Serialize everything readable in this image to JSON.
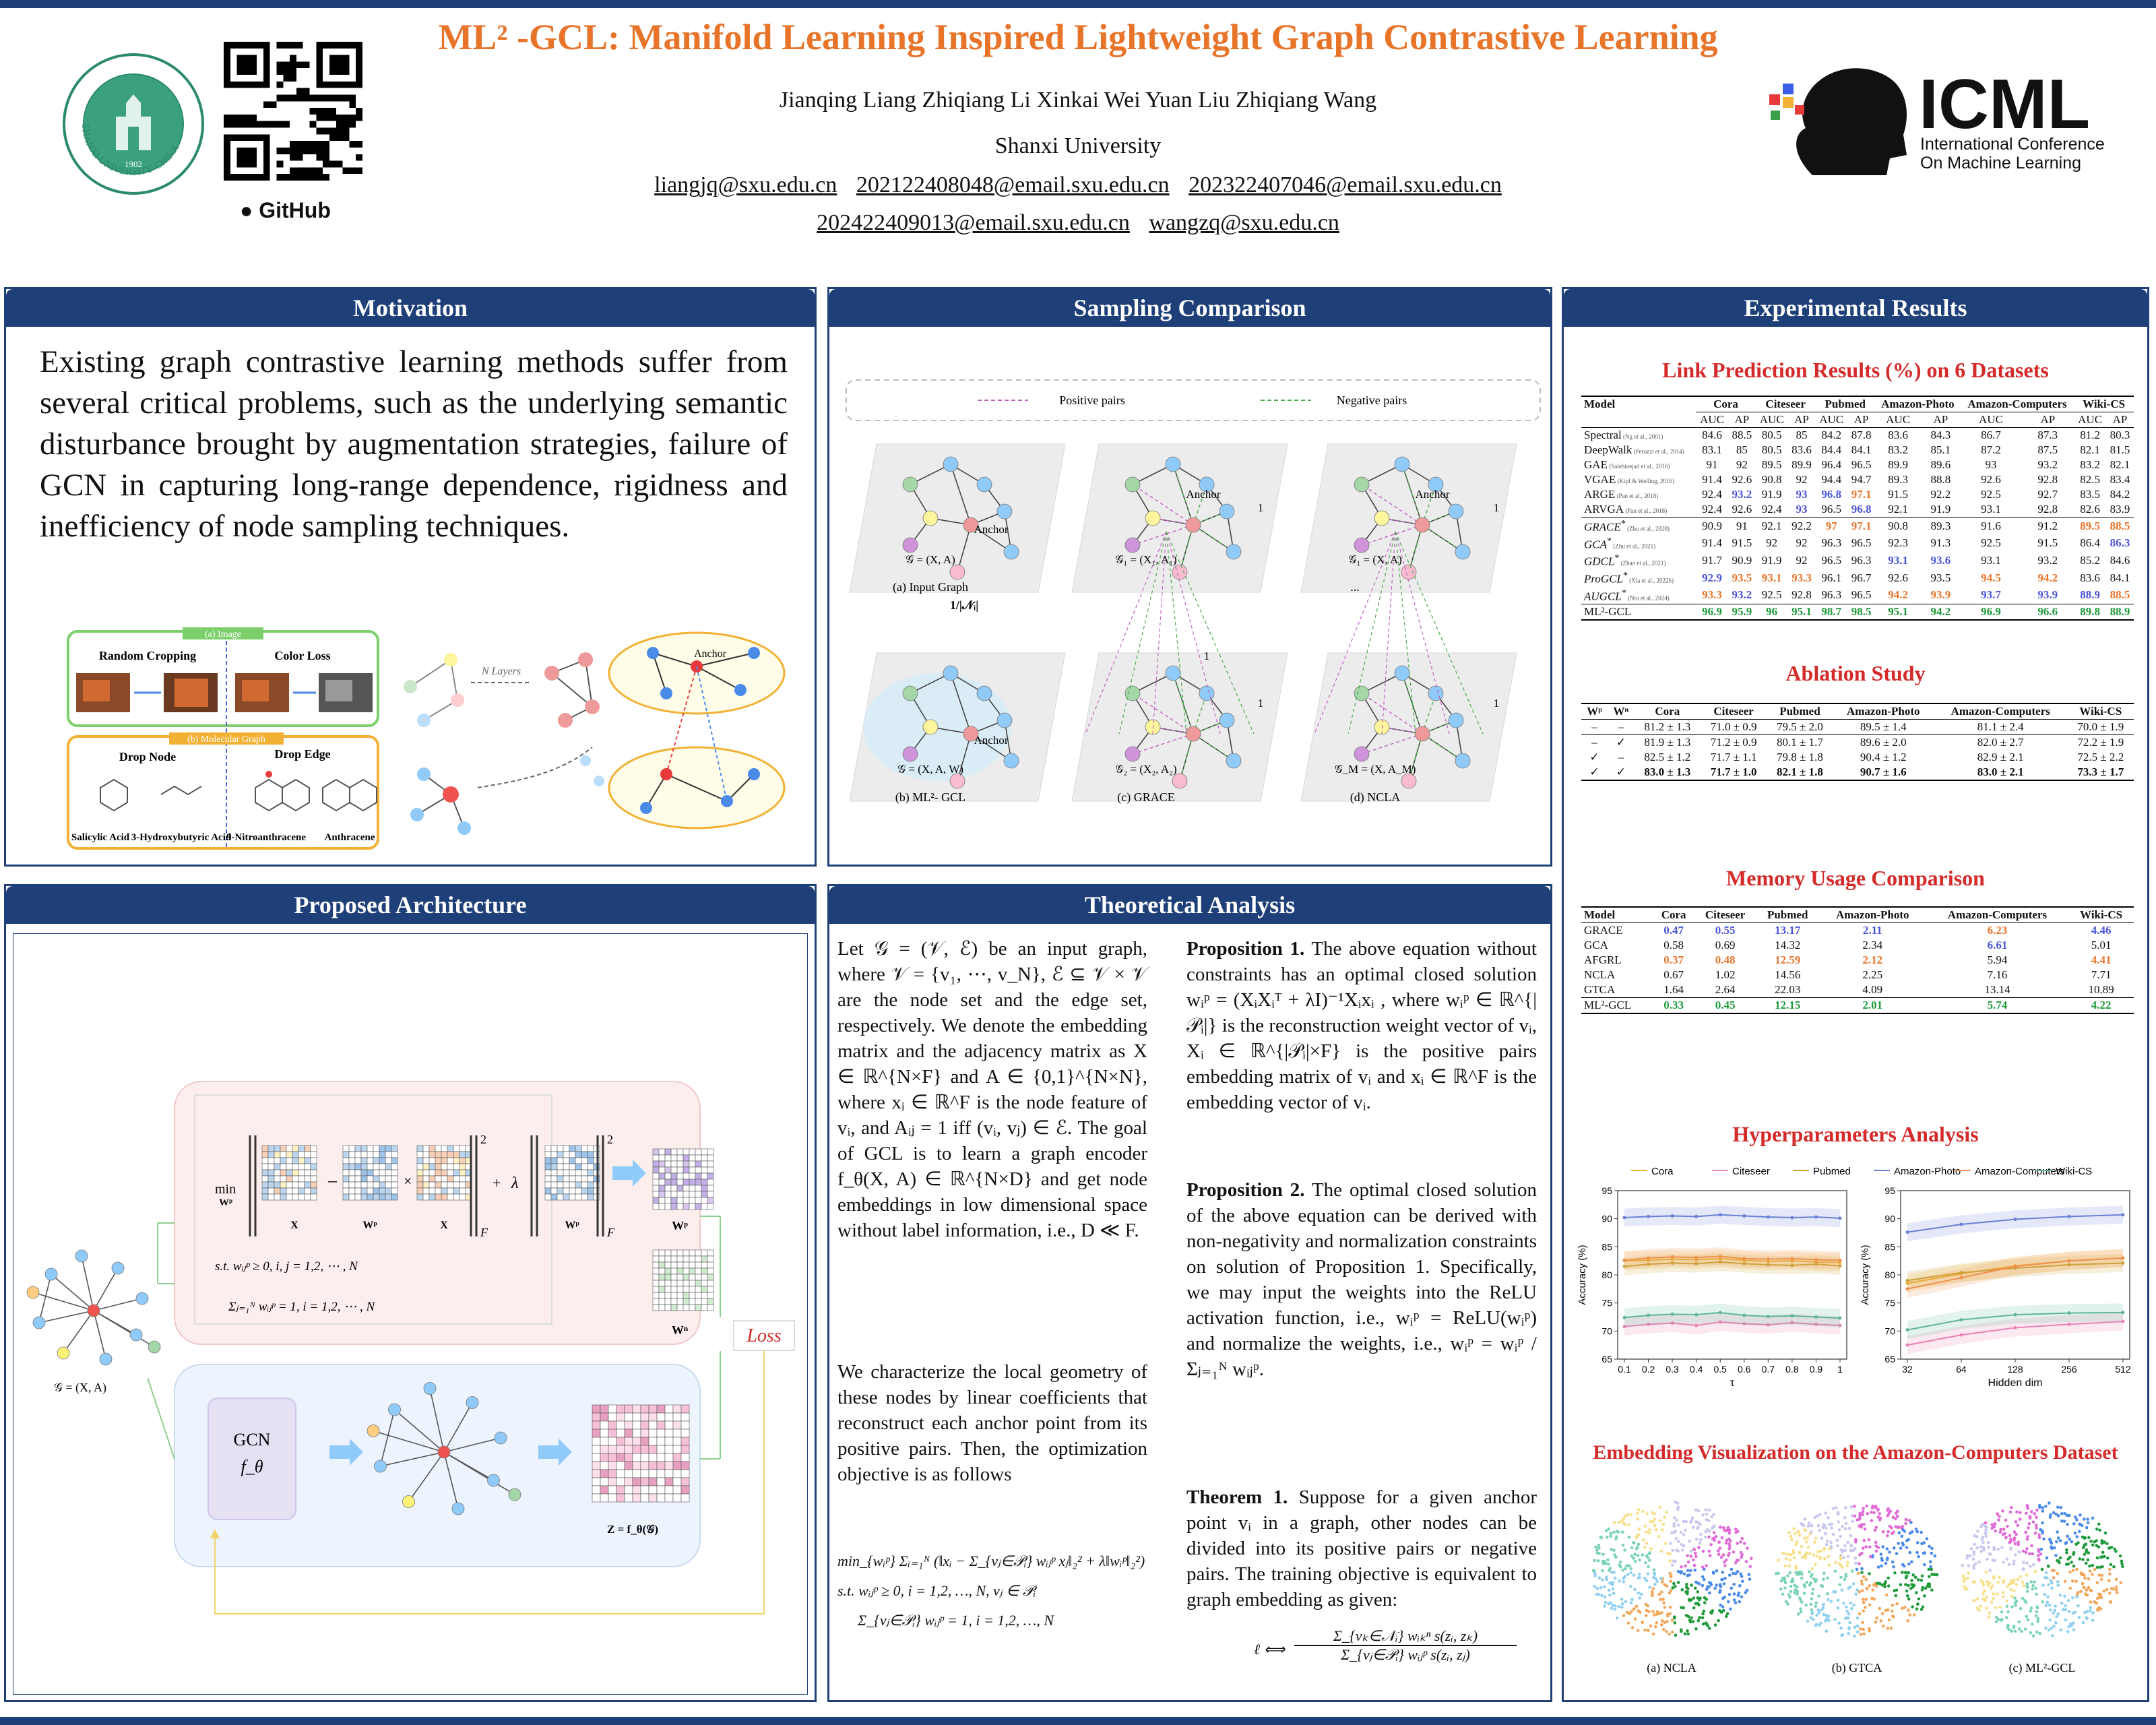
{
  "header": {
    "title": "ML² -GCL: Manifold Learning Inspired Lightweight Graph Contrastive Learning",
    "authors": "Jianqing Liang   Zhiqiang Li   Xinkai Wei   Yuan Liu   Zhiqiang Wang",
    "affiliation": "Shanxi University",
    "emails_line1": [
      "liangjq@sxu.edu.cn",
      "202122408048@email.sxu.edu.cn",
      "202322407046@email.sxu.edu.cn"
    ],
    "emails_line2": [
      "202422409013@email.sxu.edu.cn",
      "wangzq@sxu.edu.cn"
    ],
    "github_label": "GitHub",
    "uni_seal_text": "SHANXI UNIVERSITY·CHINA",
    "uni_year": "1902",
    "icml_name": "ICML",
    "icml_sub1": "International Conference",
    "icml_sub2": "On Machine Learning"
  },
  "motivation": {
    "heading": "Motivation",
    "text": "Existing graph contrastive learning methods suffer from several critical problems, such as the underlying semantic disturbance brought by augmentation strategies, failure of GCN in capturing long-range dependence, rigidness and inefficiency of node sampling techniques.",
    "fig": {
      "image_tag": "(a) Image",
      "random_cropping": "Random Cropping",
      "color_loss": "Color Loss",
      "mol_tag": "(b) Molecular Graph",
      "drop_node": "Drop Node",
      "drop_edge": "Drop Edge",
      "mol_labels": [
        "Salicylic Acid",
        "3-Hydroxybutyric Acid",
        "9-Nitroanthracene",
        "Anthracene"
      ],
      "n_layers": "N Layers",
      "anchor": "Anchor"
    }
  },
  "sampling": {
    "heading": "Sampling Comparison",
    "legend_pos": "Positive pairs",
    "legend_neg": "Negative pairs",
    "graph_labels": [
      "𝒢 = (X, A)",
      "𝒢₁ = (X₁, A₁)",
      "𝒢₁ = (X, A)",
      "𝒢 = (X, A, W)",
      "𝒢₂ = (X₂, A₂)",
      "𝒢_M = (X, A_M)"
    ],
    "anchor": "Anchor",
    "captions": [
      "(a)   Input Graph",
      "(b)   ML²- GCL",
      "(c)   GRACE",
      "(d)   NCLA"
    ],
    "dots": "...",
    "one": "1",
    "frac": "1/|𝒩ᵢ|"
  },
  "architecture": {
    "heading": "Proposed Architecture",
    "min_label": "min",
    "min_sub": "Wᵖ",
    "x_label": "X",
    "wp_label": "Wᵖ",
    "wn_label": "Wⁿ",
    "lambda": "λ",
    "constraint1": "s.t.  wᵢⱼᵖ ≥ 0, i, j = 1,2, ⋯ , N",
    "constraint2": "Σⱼ₌₁ᴺ wᵢⱼᵖ = 1, i = 1,2, ⋯ , N",
    "gcn": "GCN",
    "f_theta": "f_θ",
    "graph_label": "𝒢 = (X, A)",
    "z_label": "Z = f_θ(𝒢)",
    "loss": "Loss",
    "sq": "2",
    "fro": "F"
  },
  "theory": {
    "heading": "Theoretical Analysis",
    "para1": "Let 𝒢 = (𝒱, ℰ) be an input graph, where 𝒱 = {v₁, ⋯, v_N}, ℰ ⊆ 𝒱 × 𝒱 are the node set and the edge set, respectively. We denote the embedding matrix and the adjacency matrix as X ∈ ℝ^{N×F} and A ∈ {0,1}^{N×N}, where xᵢ ∈ ℝ^F is the node feature of vᵢ, and Aᵢⱼ = 1 iff (vᵢ, vⱼ) ∈ ℰ. The goal of GCL is to learn a graph encoder f_θ(X, A) ∈ ℝ^{N×D} and get node embeddings in low dimensional space without label information, i.e., D ≪ F.",
    "para2": "We characterize the local geometry of these nodes by linear coefficients that reconstruct each anchor point from its positive pairs. Then, the optimization objective is as follows",
    "eq1": "min_{wᵢᵖ} Σᵢ₌₁ᴺ (‖xᵢ − Σ_{vⱼ∈𝒫ᵢ} wᵢⱼᵖ xⱼ‖₂² + λ‖wᵢᵖ‖₂²)",
    "eq2": "s.t.  wᵢⱼᵖ ≥ 0, i = 1,2, …, N, vⱼ ∈ 𝒫ᵢ",
    "eq3": "Σ_{vⱼ∈𝒫ᵢ} wᵢⱼᵖ = 1, i = 1,2, …, N",
    "prop1_title": "Proposition 1.",
    "prop1": "The above equation without constraints has an optimal closed solution  wᵢᵖ = (XᵢXᵢᵀ + λI)⁻¹Xᵢxᵢ ,  where wᵢᵖ ∈ ℝ^{|𝒫ᵢ|} is the reconstruction weight vector of vᵢ, Xᵢ ∈ ℝ^{|𝒫ᵢ|×F} is the positive pairs embedding matrix of vᵢ and xᵢ ∈ ℝ^F is the embedding vector of vᵢ.",
    "prop2_title": "Proposition 2.",
    "prop2": "The optimal closed solution of the above equation can be derived with non-negativity and normalization constraints on solution of Proposition 1. Specifically, we may input the weights into the ReLU activation function, i.e., wᵢᵖ = ReLU(wᵢᵖ) and normalize the weights, i.e., wᵢᵖ = wᵢᵖ / Σⱼ₌₁ᴺ wᵢⱼᵖ.",
    "thm_title": "Theorem 1.",
    "thm": "Suppose for a given anchor point vᵢ in a graph, other nodes can be divided into its positive pairs or negative pairs. The training objective is equivalent to graph embedding as given:",
    "thm_eq_num": "Σ_{vₖ∈𝒩ᵢ} wᵢₖⁿ s(zᵢ, zₖ)",
    "thm_eq_den": "Σ_{vⱼ∈𝒫ᵢ} wᵢⱼᵖ s(zᵢ, zⱼ)",
    "thm_eq_lhs": "ℓ ⟺"
  },
  "results": {
    "heading": "Experimental Results",
    "link_title": "Link Prediction Results (%) on 6 Datasets",
    "link_datasets": [
      "Cora",
      "Citeseer",
      "Pubmed",
      "Amazon-Photo",
      "Amazon-Computers",
      "Wiki-CS"
    ],
    "link_model_col": "Model",
    "link_sub": [
      "AUC",
      "AP"
    ],
    "link_rows_a": [
      {
        "m": "Spectral",
        "ref": "(Ng et al., 2001)",
        "v": [
          "84.6",
          "88.5",
          "80.5",
          "85",
          "84.2",
          "87.8",
          "83.6",
          "84.3",
          "86.7",
          "87.3",
          "81.2",
          "80.3"
        ]
      },
      {
        "m": "DeepWalk",
        "ref": "(Perozzi et al., 2014)",
        "v": [
          "83.1",
          "85",
          "80.5",
          "83.6",
          "84.4",
          "84.1",
          "83.2",
          "85.1",
          "87.2",
          "87.5",
          "82.1",
          "81.5"
        ]
      },
      {
        "m": "GAE",
        "ref": "(Salehinejad et al., 2016)",
        "v": [
          "91",
          "92",
          "89.5",
          "89.9",
          "96.4",
          "96.5",
          "89.9",
          "89.6",
          "93",
          "93.2",
          "83.2",
          "82.1"
        ]
      },
      {
        "m": "VGAE",
        "ref": "(Kipf & Welling, 2016)",
        "v": [
          "91.4",
          "92.6",
          "90.8",
          "92",
          "94.4",
          "94.7",
          "89.3",
          "88.8",
          "92.6",
          "92.8",
          "82.5",
          "83.4"
        ]
      },
      {
        "m": "ARGE",
        "ref": "(Pan et al., 2018)",
        "v": [
          "92.4",
          "93.2",
          "91.9",
          "93",
          "96.8",
          "97.1",
          "91.5",
          "92.2",
          "92.5",
          "92.7",
          "83.5",
          "84.2"
        ]
      },
      {
        "m": "ARVGA",
        "ref": "(Pan et al., 2018)",
        "v": [
          "92.4",
          "92.6",
          "92.4",
          "93",
          "96.5",
          "96.8",
          "92.1",
          "91.9",
          "93.1",
          "92.8",
          "82.6",
          "83.9"
        ]
      }
    ],
    "link_rows_b": [
      {
        "m": "GRACE",
        "sup": "*",
        "ref": "(Zhu et al., 2020)",
        "v": [
          "90.9",
          "91",
          "92.1",
          "92.2",
          "97",
          "97.1",
          "90.8",
          "89.3",
          "91.6",
          "91.2",
          "89.5",
          "88.5"
        ]
      },
      {
        "m": "GCA",
        "sup": "*",
        "ref": "(Zhu et al., 2021)",
        "v": [
          "91.4",
          "91.5",
          "92",
          "92",
          "96.3",
          "96.5",
          "92.3",
          "91.3",
          "92.5",
          "91.5",
          "86.4",
          "86.3"
        ]
      },
      {
        "m": "GDCL",
        "sup": "*",
        "ref": "(Zhao et al., 2021)",
        "v": [
          "91.7",
          "90.9",
          "91.9",
          "92",
          "96.5",
          "96.3",
          "93.1",
          "93.6",
          "93.1",
          "93.2",
          "85.2",
          "84.6"
        ]
      },
      {
        "m": "ProGCL",
        "sup": "*",
        "ref": "(Xia et al., 2022b)",
        "v": [
          "92.9",
          "93.5",
          "93.1",
          "93.3",
          "96.1",
          "96.7",
          "92.6",
          "93.5",
          "94.5",
          "94.2",
          "83.6",
          "84.1"
        ]
      },
      {
        "m": "AUGCL",
        "sup": "*",
        "ref": "(Niu et al., 2024)",
        "v": [
          "93.3",
          "93.2",
          "92.5",
          "92.8",
          "96.3",
          "96.5",
          "94.2",
          "93.9",
          "93.7",
          "93.9",
          "88.9",
          "88.5"
        ]
      }
    ],
    "link_row_ours": {
      "m": "ML²-GCL",
      "v": [
        "96.9",
        "95.9",
        "96",
        "95.1",
        "98.7",
        "98.5",
        "95.1",
        "94.2",
        "96.9",
        "96.6",
        "89.8",
        "88.9"
      ]
    },
    "ablation_title": "Ablation Study",
    "ablation_cols": [
      "Wᵖ",
      "Wⁿ",
      "Cora",
      "Citeseer",
      "Pubmed",
      "Amazon-Photo",
      "Amazon-Computers",
      "Wiki-CS"
    ],
    "ablation_rows": [
      [
        "–",
        "–",
        "81.2 ± 1.3",
        "71.0 ± 0.9",
        "79.5 ± 2.0",
        "89.5 ± 1.4",
        "81.1 ± 2.4",
        "70.0 ± 1.9"
      ],
      [
        "–",
        "✓",
        "81.9 ± 1.3",
        "71.2 ± 0.9",
        "80.1 ± 1.7",
        "89.6 ± 2.0",
        "82.0 ± 2.7",
        "72.2 ± 1.9"
      ],
      [
        "✓",
        "–",
        "82.5 ± 1.2",
        "71.7 ± 1.1",
        "79.8 ± 1.8",
        "90.4 ± 1.2",
        "82.9 ± 2.1",
        "72.5 ± 2.2"
      ],
      [
        "✓",
        "✓",
        "83.0 ± 1.3",
        "71.7 ± 1.0",
        "82.1 ± 1.8",
        "90.7 ± 1.6",
        "83.0 ± 2.1",
        "73.3 ± 1.7"
      ]
    ],
    "memory_title": "Memory Usage Comparison",
    "memory_cols": [
      "Model",
      "Cora",
      "Citeseer",
      "Pubmed",
      "Amazon-Photo",
      "Amazon-Computers",
      "Wiki-CS"
    ],
    "memory_rows": [
      [
        "GRACE",
        "0.47",
        "0.55",
        "13.17",
        "2.11",
        "6.23",
        "4.46"
      ],
      [
        "GCA",
        "0.58",
        "0.69",
        "14.32",
        "2.34",
        "6.61",
        "5.01"
      ],
      [
        "AFGRL",
        "0.37",
        "0.48",
        "12.59",
        "2.12",
        "5.94",
        "4.41"
      ],
      [
        "NCLA",
        "0.67",
        "1.02",
        "14.56",
        "2.25",
        "7.16",
        "7.71"
      ],
      [
        "GTCA",
        "1.64",
        "2.64",
        "22.03",
        "4.09",
        "13.14",
        "10.89"
      ]
    ],
    "memory_ours": [
      "ML²-GCL",
      "0.33",
      "0.45",
      "12.15",
      "2.01",
      "5.74",
      "4.22"
    ],
    "hyper_title": "Hyperparameters Analysis",
    "embed_title": "Embedding Visualization on the Amazon-Computers Dataset",
    "embed_caps": [
      "(a) NCLA",
      "(b) GTCA",
      "(c) ML²-GCL"
    ]
  },
  "chart_data": [
    {
      "type": "line",
      "xlabel": "τ",
      "ylabel": "Accuracy (%)",
      "x": [
        0.1,
        0.2,
        0.3,
        0.4,
        0.5,
        0.6,
        0.7,
        0.8,
        0.9,
        1
      ],
      "x_ticks": [
        "0.1",
        "0.2",
        "0.3",
        "0.4",
        "0.5",
        "0.6",
        "0.7",
        "0.8",
        "0.9",
        "1"
      ],
      "ylim": [
        65,
        95
      ],
      "y_ticks": [
        65,
        70,
        75,
        80,
        85,
        90,
        95
      ],
      "series": [
        {
          "name": "Cora",
          "color": "#f2b134",
          "values": [
            82.5,
            82.6,
            82.8,
            82.7,
            82.9,
            82.6,
            82.4,
            82.5,
            82.3,
            82.2
          ]
        },
        {
          "name": "Citeseer",
          "color": "#e882b4",
          "values": [
            70.8,
            71.2,
            71.4,
            71.0,
            71.6,
            71.3,
            71.1,
            71.5,
            71.2,
            71.0
          ]
        },
        {
          "name": "Pubmed",
          "color": "#c9a53a",
          "values": [
            81.5,
            81.9,
            82.1,
            82.0,
            82.3,
            82.0,
            81.8,
            81.7,
            81.9,
            81.6
          ]
        },
        {
          "name": "Amazon-Photo",
          "color": "#6a7fd6",
          "values": [
            90.2,
            90.4,
            90.5,
            90.4,
            90.7,
            90.5,
            90.3,
            90.2,
            90.3,
            90.1
          ]
        },
        {
          "name": "Amazon-Computers",
          "color": "#ef9050",
          "values": [
            82.6,
            83.0,
            83.2,
            83.1,
            83.3,
            82.9,
            82.8,
            82.9,
            82.7,
            82.6
          ]
        },
        {
          "name": "Wiki-CS",
          "color": "#5fb59a",
          "values": [
            72.4,
            72.8,
            73.0,
            72.9,
            73.3,
            72.8,
            72.6,
            72.7,
            72.5,
            72.3
          ]
        }
      ]
    },
    {
      "type": "line",
      "xlabel": "Hidden dim",
      "ylabel": "Accuracy (%)",
      "x": [
        32,
        64,
        128,
        256,
        512
      ],
      "x_ticks": [
        "32",
        "64",
        "128",
        "256",
        "512"
      ],
      "ylim": [
        65,
        95
      ],
      "y_ticks": [
        65,
        70,
        75,
        80,
        85,
        90,
        95
      ],
      "series": [
        {
          "name": "Cora",
          "color": "#f2b134",
          "values": [
            78.5,
            80.2,
            81.6,
            82.5,
            83.0
          ]
        },
        {
          "name": "Citeseer",
          "color": "#e882b4",
          "values": [
            67.5,
            69.3,
            70.6,
            71.2,
            71.7
          ]
        },
        {
          "name": "Pubmed",
          "color": "#c9a53a",
          "values": [
            79.0,
            80.4,
            81.2,
            81.8,
            82.1
          ]
        },
        {
          "name": "Amazon-Photo",
          "color": "#6a7fd6",
          "values": [
            87.6,
            89.0,
            89.9,
            90.4,
            90.7
          ]
        },
        {
          "name": "Amazon-Computers",
          "color": "#ef9050",
          "values": [
            77.5,
            79.5,
            81.5,
            82.5,
            83.0
          ]
        },
        {
          "name": "Wiki-CS",
          "color": "#5fb59a",
          "values": [
            70.2,
            72.0,
            72.9,
            73.2,
            73.3
          ]
        }
      ]
    }
  ]
}
